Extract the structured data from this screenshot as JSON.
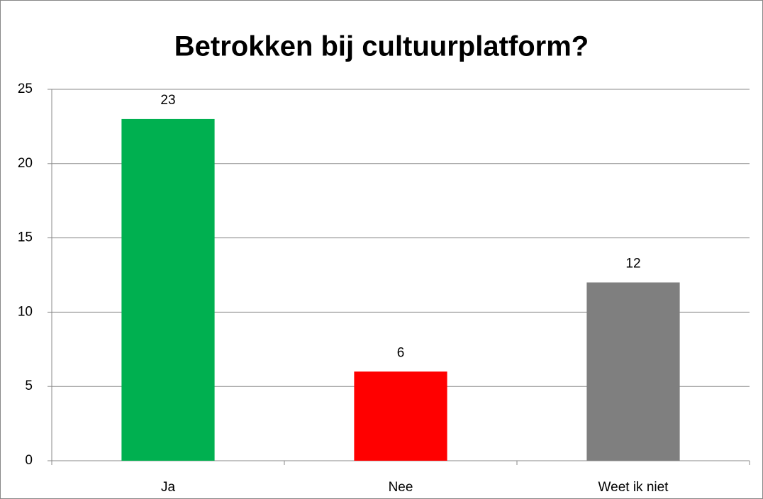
{
  "chart_data": {
    "type": "bar",
    "title": "Betrokken bij cultuurplatform?",
    "categories": [
      "Ja",
      "Nee",
      "Weet ik niet"
    ],
    "values": [
      23,
      6,
      12
    ],
    "colors": [
      "#00b050",
      "#ff0000",
      "#7f7f7f"
    ],
    "ylim": [
      0,
      25
    ],
    "yticks": [
      0,
      5,
      10,
      15,
      20,
      25
    ],
    "grid": true
  }
}
